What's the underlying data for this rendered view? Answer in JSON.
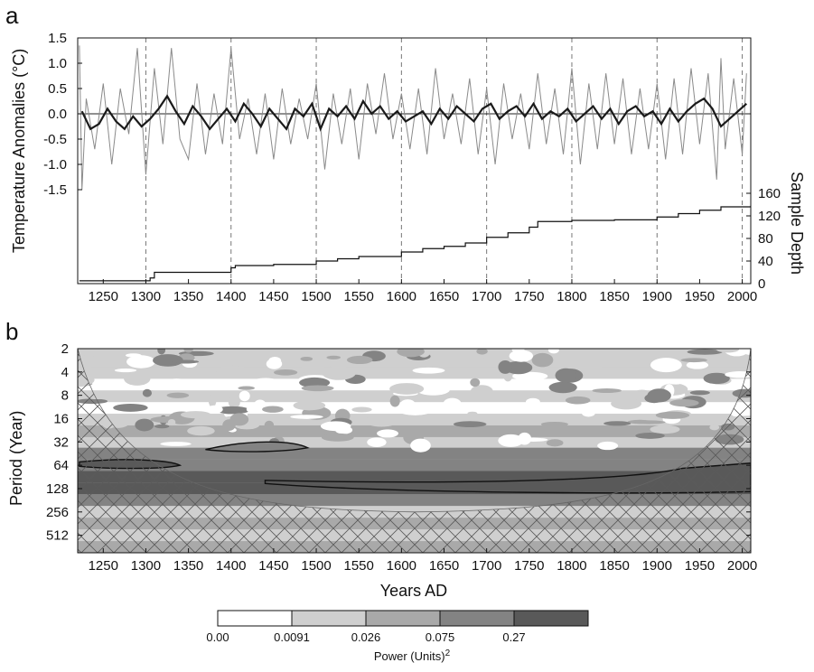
{
  "chart_data": [
    {
      "type": "line",
      "panel_label": "a",
      "ylabel": "Temperature Anomalies (°C)",
      "y2label": "Sample Depth",
      "xlim": [
        1220,
        2010
      ],
      "ylim": [
        -1.5,
        1.5
      ],
      "y2lim": [
        0,
        160
      ],
      "x_ticks": [
        1250,
        1300,
        1350,
        1400,
        1450,
        1500,
        1550,
        1600,
        1650,
        1700,
        1750,
        1800,
        1850,
        1900,
        1950,
        2000
      ],
      "y_ticks": [
        "1.5",
        "1.0",
        "0.5",
        "0.0",
        "-0.5",
        "-1.0",
        "-1.5"
      ],
      "y2_ticks": [
        0,
        40,
        80,
        120,
        160
      ],
      "zero_line": true,
      "vertical_dashed_lines": [
        1300,
        1400,
        1500,
        1600,
        1700,
        1800,
        1900,
        2000
      ],
      "series": [
        {
          "role": "annual temperature anomalies",
          "color": "#8a8a8a",
          "x": [
            1222,
            1225,
            1230,
            1240,
            1250,
            1260,
            1270,
            1280,
            1290,
            1300,
            1310,
            1320,
            1330,
            1340,
            1350,
            1360,
            1370,
            1380,
            1390,
            1400,
            1410,
            1420,
            1430,
            1440,
            1450,
            1460,
            1470,
            1480,
            1490,
            1500,
            1510,
            1520,
            1530,
            1540,
            1550,
            1560,
            1570,
            1580,
            1590,
            1600,
            1610,
            1620,
            1630,
            1640,
            1650,
            1660,
            1670,
            1680,
            1690,
            1700,
            1710,
            1720,
            1730,
            1740,
            1750,
            1760,
            1770,
            1780,
            1790,
            1800,
            1810,
            1820,
            1830,
            1840,
            1850,
            1860,
            1870,
            1880,
            1890,
            1900,
            1910,
            1920,
            1930,
            1940,
            1950,
            1960,
            1970,
            1975,
            1980,
            1990,
            2000,
            2005
          ],
          "y": [
            1.35,
            -1.5,
            0.3,
            -0.7,
            0.6,
            -1.0,
            0.5,
            -0.4,
            1.3,
            -1.2,
            0.9,
            -0.6,
            1.3,
            -0.5,
            -0.9,
            0.6,
            -0.8,
            0.4,
            -0.6,
            1.3,
            -0.5,
            0.3,
            -0.8,
            0.4,
            -0.9,
            0.5,
            -0.6,
            0.3,
            -0.5,
            0.6,
            -1.1,
            0.4,
            -0.6,
            0.5,
            -0.9,
            0.6,
            -0.4,
            0.8,
            -0.5,
            0.4,
            -0.7,
            0.5,
            -0.8,
            0.9,
            -0.5,
            0.4,
            -0.6,
            0.7,
            -0.8,
            0.5,
            -1.0,
            0.6,
            -0.5,
            0.4,
            -0.7,
            0.8,
            -0.6,
            0.5,
            -0.8,
            0.9,
            -1.0,
            0.6,
            -0.7,
            0.8,
            -0.6,
            0.7,
            -0.8,
            0.5,
            -0.7,
            0.6,
            -0.9,
            0.7,
            -0.8,
            0.9,
            -0.6,
            0.8,
            -1.3,
            1.1,
            -0.7,
            0.7,
            -0.8,
            0.8
          ]
        },
        {
          "role": "smoothed temperature anomalies",
          "color": "#1a1a1a",
          "x": [
            1225,
            1235,
            1245,
            1255,
            1265,
            1275,
            1285,
            1295,
            1305,
            1315,
            1325,
            1335,
            1345,
            1355,
            1365,
            1375,
            1385,
            1395,
            1405,
            1415,
            1425,
            1435,
            1445,
            1455,
            1465,
            1475,
            1485,
            1495,
            1505,
            1515,
            1525,
            1535,
            1545,
            1555,
            1565,
            1575,
            1585,
            1595,
            1605,
            1615,
            1625,
            1635,
            1645,
            1655,
            1665,
            1675,
            1685,
            1695,
            1705,
            1715,
            1725,
            1735,
            1745,
            1755,
            1765,
            1775,
            1785,
            1795,
            1805,
            1815,
            1825,
            1835,
            1845,
            1855,
            1865,
            1875,
            1885,
            1895,
            1905,
            1915,
            1925,
            1935,
            1945,
            1955,
            1965,
            1975,
            1985,
            1995,
            2005
          ],
          "y": [
            0.05,
            -0.3,
            -0.2,
            0.1,
            -0.15,
            -0.3,
            -0.05,
            -0.25,
            -0.1,
            0.1,
            0.35,
            0.05,
            -0.2,
            0.15,
            -0.05,
            -0.3,
            -0.1,
            0.1,
            -0.15,
            0.2,
            0.0,
            -0.25,
            0.1,
            -0.1,
            -0.3,
            0.1,
            -0.05,
            0.2,
            -0.3,
            0.1,
            -0.05,
            0.15,
            -0.1,
            0.25,
            0.0,
            0.15,
            -0.1,
            0.05,
            -0.15,
            -0.05,
            0.05,
            -0.2,
            0.1,
            -0.1,
            0.15,
            0.0,
            -0.15,
            0.1,
            0.2,
            -0.1,
            0.05,
            0.15,
            -0.05,
            0.2,
            -0.1,
            0.05,
            -0.05,
            0.1,
            -0.15,
            0.0,
            0.15,
            -0.1,
            0.1,
            -0.2,
            0.05,
            0.15,
            -0.05,
            0.05,
            -0.2,
            0.1,
            -0.15,
            0.05,
            0.2,
            0.3,
            0.1,
            -0.25,
            -0.1,
            0.05,
            0.2
          ]
        },
        {
          "role": "sample depth",
          "axis": "y2",
          "color": "#111111",
          "step": true,
          "x": [
            1222,
            1305,
            1310,
            1400,
            1405,
            1450,
            1500,
            1525,
            1550,
            1600,
            1625,
            1650,
            1675,
            1700,
            1725,
            1750,
            1760,
            1800,
            1850,
            1900,
            1925,
            1950,
            1975,
            2010
          ],
          "y": [
            5,
            10,
            20,
            28,
            32,
            34,
            40,
            44,
            48,
            56,
            62,
            66,
            72,
            82,
            90,
            100,
            110,
            112,
            113,
            118,
            124,
            130,
            136,
            138
          ]
        }
      ]
    },
    {
      "type": "heatmap",
      "panel_label": "b",
      "xlabel": "Years AD",
      "ylabel": "Period (Year)",
      "xlim": [
        1220,
        2010
      ],
      "x_ticks": [
        1250,
        1300,
        1350,
        1400,
        1450,
        1500,
        1550,
        1600,
        1650,
        1700,
        1750,
        1800,
        1850,
        1900,
        1950,
        2000
      ],
      "y_ticks": [
        2,
        4,
        8,
        16,
        32,
        64,
        128,
        256,
        512
      ],
      "y_scale": "log2, inverted",
      "cone_of_influence": "hatched",
      "power_bands": [
        {
          "period": 2,
          "level": 1
        },
        {
          "period": 3,
          "level": 1
        },
        {
          "period": 4,
          "level": 1
        },
        {
          "period": 6,
          "level": 0
        },
        {
          "period": 8,
          "level": 1
        },
        {
          "period": 12,
          "level": 0
        },
        {
          "period": 16,
          "level": 1
        },
        {
          "period": 24,
          "level": 2
        },
        {
          "period": 32,
          "level": 1
        },
        {
          "period": 45,
          "level": 3
        },
        {
          "period": 64,
          "level": 3
        },
        {
          "period": 90,
          "level": 4
        },
        {
          "period": 128,
          "level": 4
        },
        {
          "period": 180,
          "level": 3
        },
        {
          "period": 256,
          "level": 1
        },
        {
          "period": 360,
          "level": 2
        },
        {
          "period": 512,
          "level": 1
        },
        {
          "period": 724,
          "level": 2
        }
      ],
      "colorbar": {
        "label": "Power (Units)",
        "label_superscript": "2",
        "tick_labels": [
          "0.00",
          "0.0091",
          "0.026",
          "0.075",
          "0.27"
        ],
        "colors": [
          "#ffffff",
          "#cfcfcf",
          "#a9a9a9",
          "#838383",
          "#595959"
        ]
      }
    }
  ]
}
